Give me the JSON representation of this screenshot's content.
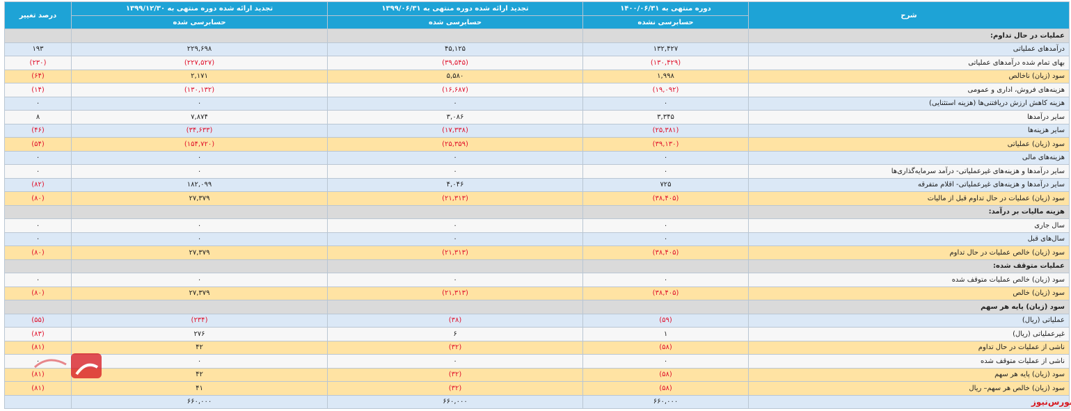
{
  "header": {
    "col_desc": "شرح",
    "col_p1": "دوره منتهی به ۱۴۰۰/۰۶/۳۱",
    "col_p1_sub": "حسابرسی نشده",
    "col_p2": "تجدید ارائه شده دوره منتهی به ۱۳۹۹/۰۶/۳۱",
    "col_p2_sub": "حسابرسی شده",
    "col_p3": "تجدید ارائه شده دوره منتهی به ۱۳۹۹/۱۲/۳۰",
    "col_p3_sub": "حسابرسی شده",
    "col_change": "درصد تغییر"
  },
  "rows": [
    {
      "type": "section",
      "label": "عملیات در حال تداوم:"
    },
    {
      "type": "blue",
      "label": "درآمدهای عملیاتی",
      "p1": "۱۳۲,۴۲۷",
      "p2": "۴۵,۱۲۵",
      "p3": "۲۲۹,۶۹۸",
      "change": "۱۹۳"
    },
    {
      "type": "white",
      "label": "بهای تمام شده درآمدهای عملیاتی",
      "p1": "(۱۳۰,۴۲۹)",
      "p2": "(۳۹,۵۴۵)",
      "p3": "(۲۲۷,۵۲۷)",
      "change": "(۲۳۰)"
    },
    {
      "type": "orange",
      "label": "سود (زیان) ناخالص",
      "p1": "۱,۹۹۸",
      "p2": "۵,۵۸۰",
      "p3": "۲,۱۷۱",
      "change": "(۶۴)"
    },
    {
      "type": "white",
      "label": "هزینه‌های فروش، اداری و عمومی",
      "p1": "(۱۹,۰۹۲)",
      "p2": "(۱۶,۶۸۷)",
      "p3": "(۱۳۰,۱۳۲)",
      "change": "(۱۴)"
    },
    {
      "type": "blue",
      "label": "هزینه کاهش ارزش دریافتنی‌ها (هزینه استثنایی)",
      "p1": "۰",
      "p2": "۰",
      "p3": "۰",
      "change": "۰"
    },
    {
      "type": "white",
      "label": "سایر درآمدها",
      "p1": "۳,۳۴۵",
      "p2": "۳,۰۸۶",
      "p3": "۷,۸۷۴",
      "change": "۸"
    },
    {
      "type": "blue",
      "label": "سایر هزینه‌ها",
      "p1": "(۲۵,۳۸۱)",
      "p2": "(۱۷,۳۳۸)",
      "p3": "(۳۴,۶۳۳)",
      "change": "(۴۶)"
    },
    {
      "type": "orange",
      "label": "سود (زیان) عملیاتی",
      "p1": "(۳۹,۱۳۰)",
      "p2": "(۲۵,۳۵۹)",
      "p3": "(۱۵۴,۷۲۰)",
      "change": "(۵۴)"
    },
    {
      "type": "blue",
      "label": "هزینه‌های مالی",
      "p1": "۰",
      "p2": "۰",
      "p3": "۰",
      "change": "۰"
    },
    {
      "type": "white",
      "label": "سایر درآمدها و هزینه‌های غیرعملیاتی- درآمد سرمایه‌گذاری‌ها",
      "p1": "۰",
      "p2": "۰",
      "p3": "۰",
      "change": "۰"
    },
    {
      "type": "blue",
      "label": "سایر درآمدها و هزینه‌های غیرعملیاتی- اقلام متفرقه",
      "p1": "۷۲۵",
      "p2": "۴,۰۴۶",
      "p3": "۱۸۲,۰۹۹",
      "change": "(۸۲)"
    },
    {
      "type": "orange",
      "label": "سود (زیان) عملیات در حال تداوم قبل از مالیات",
      "p1": "(۳۸,۴۰۵)",
      "p2": "(۲۱,۳۱۳)",
      "p3": "۲۷,۳۷۹",
      "change": "(۸۰)"
    },
    {
      "type": "section",
      "label": "هزینه مالیات بر درآمد:"
    },
    {
      "type": "white",
      "label": "سال جاری",
      "p1": "۰",
      "p2": "۰",
      "p3": "۰",
      "change": "۰"
    },
    {
      "type": "blue",
      "label": "سال‌های قبل",
      "p1": "۰",
      "p2": "۰",
      "p3": "۰",
      "change": "۰"
    },
    {
      "type": "orange",
      "label": "سود (زیان) خالص عملیات در حال تداوم",
      "p1": "(۳۸,۴۰۵)",
      "p2": "(۲۱,۳۱۳)",
      "p3": "۲۷,۳۷۹",
      "change": "(۸۰)"
    },
    {
      "type": "section",
      "label": "عملیات متوقف شده:"
    },
    {
      "type": "white",
      "label": "سود (زیان) خالص عملیات متوقف شده",
      "p1": "۰",
      "p2": "۰",
      "p3": "۰",
      "change": "۰"
    },
    {
      "type": "orange",
      "label": "سود (زیان) خالص",
      "p1": "(۳۸,۴۰۵)",
      "p2": "(۲۱,۳۱۳)",
      "p3": "۲۷,۳۷۹",
      "change": "(۸۰)"
    },
    {
      "type": "section",
      "label": "سود (زیان) پایه هر سهم"
    },
    {
      "type": "blue",
      "label": "عملیاتی (ریال)",
      "p1": "(۵۹)",
      "p2": "(۳۸)",
      "p3": "(۲۳۴)",
      "change": "(۵۵)"
    },
    {
      "type": "white",
      "label": "غیرعملیاتی (ریال)",
      "p1": "۱",
      "p2": "۶",
      "p3": "۲۷۶",
      "change": "(۸۳)"
    },
    {
      "type": "orange",
      "label": "ناشی از عملیات در حال تداوم",
      "p1": "(۵۸)",
      "p2": "(۳۲)",
      "p3": "۴۲",
      "change": "(۸۱)"
    },
    {
      "type": "white",
      "label": "ناشی از عملیات متوقف شده",
      "p1": "۰",
      "p2": "۰",
      "p3": "۰",
      "change": "۰"
    },
    {
      "type": "orange",
      "label": "سود (زیان) پایه هر سهم",
      "p1": "(۵۸)",
      "p2": "(۳۲)",
      "p3": "۴۲",
      "change": "(۸۱)"
    },
    {
      "type": "orange",
      "label": "سود (زیان) خالص هر سهم– ریال",
      "p1": "(۵۸)",
      "p2": "(۳۲)",
      "p3": "۴۱",
      "change": "(۸۱)"
    },
    {
      "type": "foot",
      "label": "",
      "p1": "۶۶۰,۰۰۰",
      "p2": "۶۶۰,۰۰۰",
      "p3": "۶۶۰,۰۰۰",
      "change": ""
    }
  ],
  "brand": "بورس‌نیوز",
  "colors": {
    "header": "#1ea3d6",
    "negative": "#e0102a",
    "blue_row": "#dbe8f6",
    "orange_row": "#ffe3a3",
    "section_row": "#dadada"
  }
}
